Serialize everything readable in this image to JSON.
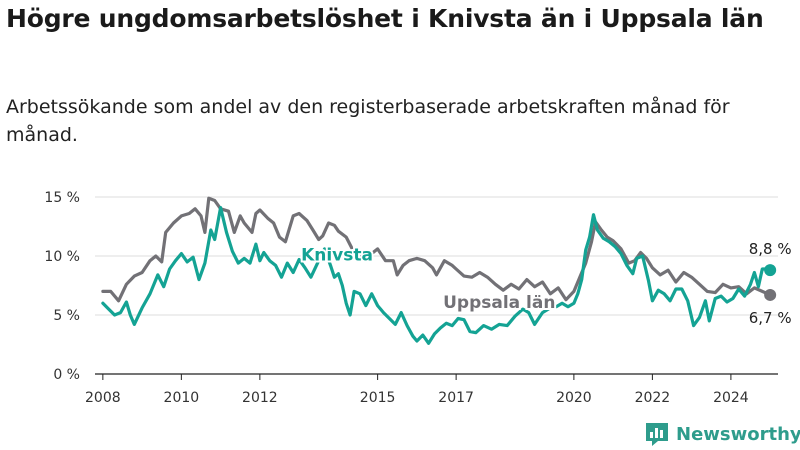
{
  "title": "Högre ungdomsarbetslöshet i Knivsta än i Uppsala län",
  "subtitle": "Arbetssökande som andel av den registerbaserade arbetskraften månad för månad.",
  "brand": "Newsworthy",
  "colors": {
    "knivsta": "#14a394",
    "uppsala": "#727176",
    "grid": "#dcdcdc",
    "brand": "#2e9c8c"
  },
  "chart_data": {
    "type": "line",
    "xlabel": "",
    "ylabel": "",
    "xlim": [
      2007.8,
      2025.2
    ],
    "ylim": [
      0,
      15
    ],
    "grid": true,
    "y_ticks": [
      0,
      5,
      10,
      15
    ],
    "y_tick_labels": [
      "0 %",
      "5 %",
      "10 %",
      "15 %"
    ],
    "x_ticks": [
      2008,
      2010,
      2012,
      2015,
      2017,
      2020,
      2022,
      2024
    ],
    "x_tick_labels": [
      "2008",
      "2010",
      "2012",
      "2015",
      "2017",
      "2020",
      "2022",
      "2024"
    ],
    "series": [
      {
        "name": "Uppsala län",
        "color": "#727176",
        "end_label": "6,7 %",
        "points": [
          [
            2008.0,
            7.0
          ],
          [
            2008.2,
            7.0
          ],
          [
            2008.4,
            6.2
          ],
          [
            2008.6,
            7.6
          ],
          [
            2008.8,
            8.3
          ],
          [
            2009.0,
            8.6
          ],
          [
            2009.2,
            9.6
          ],
          [
            2009.35,
            10.0
          ],
          [
            2009.5,
            9.5
          ],
          [
            2009.6,
            12.0
          ],
          [
            2009.8,
            12.8
          ],
          [
            2010.0,
            13.4
          ],
          [
            2010.2,
            13.6
          ],
          [
            2010.35,
            14.0
          ],
          [
            2010.5,
            13.4
          ],
          [
            2010.6,
            12.0
          ],
          [
            2010.7,
            14.9
          ],
          [
            2010.85,
            14.7
          ],
          [
            2011.0,
            14.0
          ],
          [
            2011.2,
            13.8
          ],
          [
            2011.35,
            12.0
          ],
          [
            2011.5,
            13.4
          ],
          [
            2011.6,
            12.8
          ],
          [
            2011.8,
            12.0
          ],
          [
            2011.9,
            13.6
          ],
          [
            2012.0,
            13.9
          ],
          [
            2012.2,
            13.2
          ],
          [
            2012.35,
            12.8
          ],
          [
            2012.5,
            11.6
          ],
          [
            2012.65,
            11.2
          ],
          [
            2012.85,
            13.4
          ],
          [
            2013.0,
            13.6
          ],
          [
            2013.2,
            13.0
          ],
          [
            2013.35,
            12.2
          ],
          [
            2013.5,
            11.4
          ],
          [
            2013.6,
            11.7
          ],
          [
            2013.75,
            12.8
          ],
          [
            2013.9,
            12.6
          ],
          [
            2014.0,
            12.1
          ],
          [
            2014.2,
            11.6
          ],
          [
            2014.4,
            10.3
          ],
          [
            2014.55,
            10.0
          ],
          [
            2014.7,
            10.3
          ],
          [
            2014.85,
            10.2
          ],
          [
            2015.0,
            10.6
          ],
          [
            2015.2,
            9.6
          ],
          [
            2015.4,
            9.6
          ],
          [
            2015.5,
            8.4
          ],
          [
            2015.65,
            9.2
          ],
          [
            2015.8,
            9.6
          ],
          [
            2016.0,
            9.8
          ],
          [
            2016.2,
            9.6
          ],
          [
            2016.4,
            9.0
          ],
          [
            2016.5,
            8.4
          ],
          [
            2016.7,
            9.6
          ],
          [
            2016.9,
            9.2
          ],
          [
            2017.0,
            8.9
          ],
          [
            2017.2,
            8.3
          ],
          [
            2017.4,
            8.2
          ],
          [
            2017.6,
            8.6
          ],
          [
            2017.8,
            8.2
          ],
          [
            2018.0,
            7.6
          ],
          [
            2018.2,
            7.1
          ],
          [
            2018.4,
            7.6
          ],
          [
            2018.6,
            7.2
          ],
          [
            2018.8,
            8.0
          ],
          [
            2019.0,
            7.4
          ],
          [
            2019.2,
            7.8
          ],
          [
            2019.4,
            6.8
          ],
          [
            2019.6,
            7.3
          ],
          [
            2019.8,
            6.3
          ],
          [
            2020.0,
            7.0
          ],
          [
            2020.15,
            8.2
          ],
          [
            2020.3,
            9.4
          ],
          [
            2020.45,
            11.2
          ],
          [
            2020.55,
            12.9
          ],
          [
            2020.7,
            12.2
          ],
          [
            2020.85,
            11.6
          ],
          [
            2021.0,
            11.3
          ],
          [
            2021.2,
            10.6
          ],
          [
            2021.4,
            9.4
          ],
          [
            2021.55,
            9.6
          ],
          [
            2021.7,
            10.3
          ],
          [
            2021.85,
            9.8
          ],
          [
            2022.0,
            9.0
          ],
          [
            2022.2,
            8.4
          ],
          [
            2022.4,
            8.8
          ],
          [
            2022.6,
            7.8
          ],
          [
            2022.8,
            8.6
          ],
          [
            2023.0,
            8.2
          ],
          [
            2023.2,
            7.6
          ],
          [
            2023.4,
            7.0
          ],
          [
            2023.6,
            6.9
          ],
          [
            2023.8,
            7.6
          ],
          [
            2024.0,
            7.3
          ],
          [
            2024.2,
            7.4
          ],
          [
            2024.4,
            6.8
          ],
          [
            2024.6,
            7.3
          ],
          [
            2024.8,
            7.0
          ],
          [
            2025.0,
            6.7
          ]
        ]
      },
      {
        "name": "Knivsta",
        "color": "#14a394",
        "end_label": "8,8 %",
        "points": [
          [
            2008.0,
            6.0
          ],
          [
            2008.15,
            5.5
          ],
          [
            2008.3,
            5.0
          ],
          [
            2008.45,
            5.2
          ],
          [
            2008.6,
            6.1
          ],
          [
            2008.7,
            5.0
          ],
          [
            2008.8,
            4.2
          ],
          [
            2009.0,
            5.6
          ],
          [
            2009.2,
            6.8
          ],
          [
            2009.4,
            8.4
          ],
          [
            2009.55,
            7.4
          ],
          [
            2009.7,
            8.9
          ],
          [
            2009.85,
            9.6
          ],
          [
            2010.0,
            10.2
          ],
          [
            2010.15,
            9.5
          ],
          [
            2010.3,
            9.9
          ],
          [
            2010.45,
            8.0
          ],
          [
            2010.6,
            9.4
          ],
          [
            2010.75,
            12.2
          ],
          [
            2010.85,
            11.4
          ],
          [
            2011.0,
            14.1
          ],
          [
            2011.15,
            12.0
          ],
          [
            2011.3,
            10.4
          ],
          [
            2011.45,
            9.4
          ],
          [
            2011.6,
            9.8
          ],
          [
            2011.75,
            9.4
          ],
          [
            2011.9,
            11.0
          ],
          [
            2012.0,
            9.6
          ],
          [
            2012.1,
            10.3
          ],
          [
            2012.25,
            9.6
          ],
          [
            2012.4,
            9.2
          ],
          [
            2012.55,
            8.2
          ],
          [
            2012.7,
            9.4
          ],
          [
            2012.85,
            8.6
          ],
          [
            2013.0,
            9.7
          ],
          [
            2013.15,
            9.0
          ],
          [
            2013.3,
            8.2
          ],
          [
            2013.5,
            9.6
          ],
          [
            2013.65,
            10.6
          ],
          [
            2013.8,
            9.2
          ],
          [
            2013.9,
            8.2
          ],
          [
            2014.0,
            8.5
          ],
          [
            2014.1,
            7.5
          ],
          [
            2014.2,
            6.0
          ],
          [
            2014.3,
            5.0
          ],
          [
            2014.4,
            7.0
          ],
          [
            2014.55,
            6.8
          ],
          [
            2014.7,
            5.8
          ],
          [
            2014.85,
            6.8
          ],
          [
            2015.0,
            5.8
          ],
          [
            2015.15,
            5.2
          ],
          [
            2015.3,
            4.7
          ],
          [
            2015.45,
            4.2
          ],
          [
            2015.6,
            5.2
          ],
          [
            2015.75,
            4.1
          ],
          [
            2015.9,
            3.2
          ],
          [
            2016.0,
            2.8
          ],
          [
            2016.15,
            3.3
          ],
          [
            2016.3,
            2.6
          ],
          [
            2016.45,
            3.4
          ],
          [
            2016.6,
            3.9
          ],
          [
            2016.75,
            4.3
          ],
          [
            2016.9,
            4.1
          ],
          [
            2017.05,
            4.7
          ],
          [
            2017.2,
            4.6
          ],
          [
            2017.35,
            3.6
          ],
          [
            2017.5,
            3.5
          ],
          [
            2017.7,
            4.1
          ],
          [
            2017.9,
            3.8
          ],
          [
            2018.1,
            4.2
          ],
          [
            2018.3,
            4.1
          ],
          [
            2018.5,
            4.9
          ],
          [
            2018.7,
            5.5
          ],
          [
            2018.85,
            5.2
          ],
          [
            2019.0,
            4.2
          ],
          [
            2019.2,
            5.2
          ],
          [
            2019.4,
            5.6
          ],
          [
            2019.55,
            5.7
          ],
          [
            2019.7,
            6.0
          ],
          [
            2019.85,
            5.7
          ],
          [
            2020.0,
            6.0
          ],
          [
            2020.1,
            6.8
          ],
          [
            2020.2,
            8.0
          ],
          [
            2020.3,
            10.5
          ],
          [
            2020.4,
            11.6
          ],
          [
            2020.5,
            13.5
          ],
          [
            2020.6,
            12.2
          ],
          [
            2020.75,
            11.5
          ],
          [
            2020.9,
            11.2
          ],
          [
            2021.05,
            10.8
          ],
          [
            2021.2,
            10.2
          ],
          [
            2021.35,
            9.2
          ],
          [
            2021.5,
            8.5
          ],
          [
            2021.6,
            9.8
          ],
          [
            2021.75,
            10.0
          ],
          [
            2021.9,
            7.9
          ],
          [
            2022.0,
            6.2
          ],
          [
            2022.15,
            7.1
          ],
          [
            2022.3,
            6.8
          ],
          [
            2022.45,
            6.2
          ],
          [
            2022.6,
            7.2
          ],
          [
            2022.75,
            7.2
          ],
          [
            2022.9,
            6.2
          ],
          [
            2023.05,
            4.1
          ],
          [
            2023.2,
            4.8
          ],
          [
            2023.35,
            6.2
          ],
          [
            2023.45,
            4.5
          ],
          [
            2023.6,
            6.4
          ],
          [
            2023.75,
            6.6
          ],
          [
            2023.9,
            6.1
          ],
          [
            2024.05,
            6.4
          ],
          [
            2024.2,
            7.2
          ],
          [
            2024.35,
            6.6
          ],
          [
            2024.5,
            7.6
          ],
          [
            2024.6,
            8.6
          ],
          [
            2024.7,
            7.4
          ],
          [
            2024.8,
            8.9
          ],
          [
            2024.9,
            8.9
          ],
          [
            2025.0,
            8.8
          ]
        ]
      }
    ]
  }
}
